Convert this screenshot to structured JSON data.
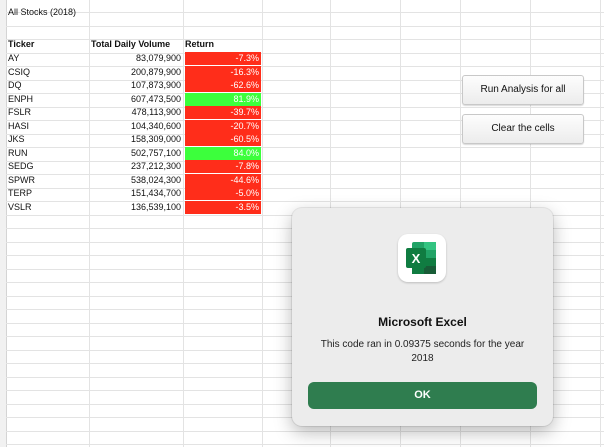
{
  "sheet": {
    "title": "All Stocks (2018)",
    "headers": [
      "Ticker",
      "Total Daily Volume",
      "Return"
    ],
    "rows": [
      {
        "ticker": "AY",
        "volume": "83,079,900",
        "ret": "-7.3%",
        "status": "negative"
      },
      {
        "ticker": "CSIQ",
        "volume": "200,879,900",
        "ret": "-16.3%",
        "status": "negative"
      },
      {
        "ticker": "DQ",
        "volume": "107,873,900",
        "ret": "-62.6%",
        "status": "negative"
      },
      {
        "ticker": "ENPH",
        "volume": "607,473,500",
        "ret": "81.9%",
        "status": "positive"
      },
      {
        "ticker": "FSLR",
        "volume": "478,113,900",
        "ret": "-39.7%",
        "status": "negative"
      },
      {
        "ticker": "HASI",
        "volume": "104,340,600",
        "ret": "-20.7%",
        "status": "negative"
      },
      {
        "ticker": "JKS",
        "volume": "158,309,000",
        "ret": "-60.5%",
        "status": "negative"
      },
      {
        "ticker": "RUN",
        "volume": "502,757,100",
        "ret": "84.0%",
        "status": "positive"
      },
      {
        "ticker": "SEDG",
        "volume": "237,212,300",
        "ret": "-7.8%",
        "status": "negative"
      },
      {
        "ticker": "SPWR",
        "volume": "538,024,300",
        "ret": "-44.6%",
        "status": "negative"
      },
      {
        "ticker": "TERP",
        "volume": "151,434,700",
        "ret": "-5.0%",
        "status": "negative"
      },
      {
        "ticker": "VSLR",
        "volume": "136,539,100",
        "ret": "-3.5%",
        "status": "negative"
      }
    ]
  },
  "buttons": {
    "run_label": "Run Analysis for all",
    "clear_label": "Clear the cells"
  },
  "dialog": {
    "app_icon": "excel-icon",
    "title": "Microsoft Excel",
    "message": "This code ran in 0.09375 seconds for the year 2018",
    "ok_label": "OK"
  },
  "colors": {
    "negative": "#ff2d1a",
    "positive": "#3cff3c",
    "ok_button": "#2f7d4f"
  }
}
